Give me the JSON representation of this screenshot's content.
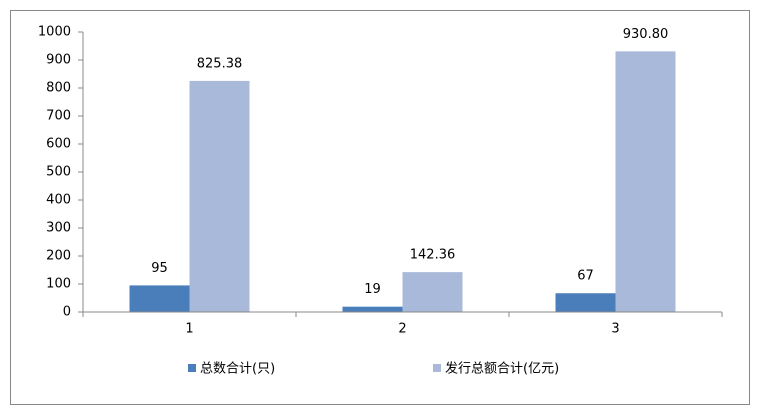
{
  "chart_data": {
    "type": "bar",
    "categories": [
      "1",
      "2",
      "3"
    ],
    "series": [
      {
        "name": "总数合计(只)",
        "color": "#4a7ebb",
        "values": [
          95,
          19,
          67
        ]
      },
      {
        "name": "发行总额合计(亿元)",
        "color": "#a9b9d9",
        "values": [
          825.38,
          142.36,
          930.8
        ],
        "value_labels": [
          "825.38",
          "142.36",
          "930.80"
        ]
      }
    ],
    "ylim": [
      0,
      1000
    ],
    "yticks": [
      0,
      100,
      200,
      300,
      400,
      500,
      600,
      700,
      800,
      900,
      1000
    ],
    "grid": false,
    "legend": "bottom"
  }
}
